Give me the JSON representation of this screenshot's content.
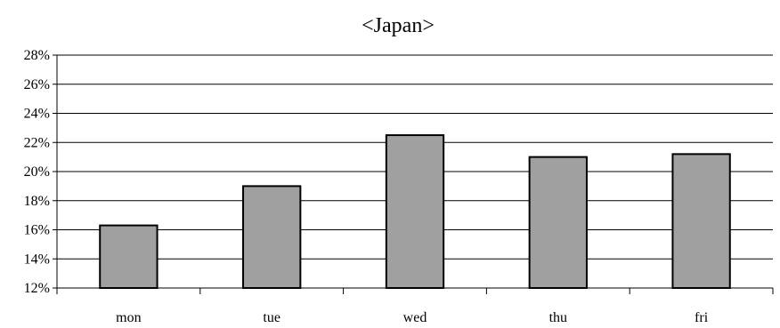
{
  "chart_data": {
    "type": "bar",
    "title": "<Japan>",
    "categories": [
      "mon",
      "tue",
      "wed",
      "thu",
      "fri"
    ],
    "values": [
      16.3,
      19.0,
      22.5,
      21.0,
      21.2
    ],
    "ylim": [
      12,
      28
    ],
    "yticks": [
      12,
      14,
      16,
      18,
      20,
      22,
      24,
      26,
      28
    ],
    "ytick_labels": [
      "12%",
      "14%",
      "16%",
      "18%",
      "20%",
      "22%",
      "24%",
      "26%",
      "28%"
    ],
    "xlabel": "",
    "ylabel": "",
    "grid": true,
    "legend": "none",
    "bar_color": "#a0a0a0",
    "bar_edge_color": "#000000"
  }
}
